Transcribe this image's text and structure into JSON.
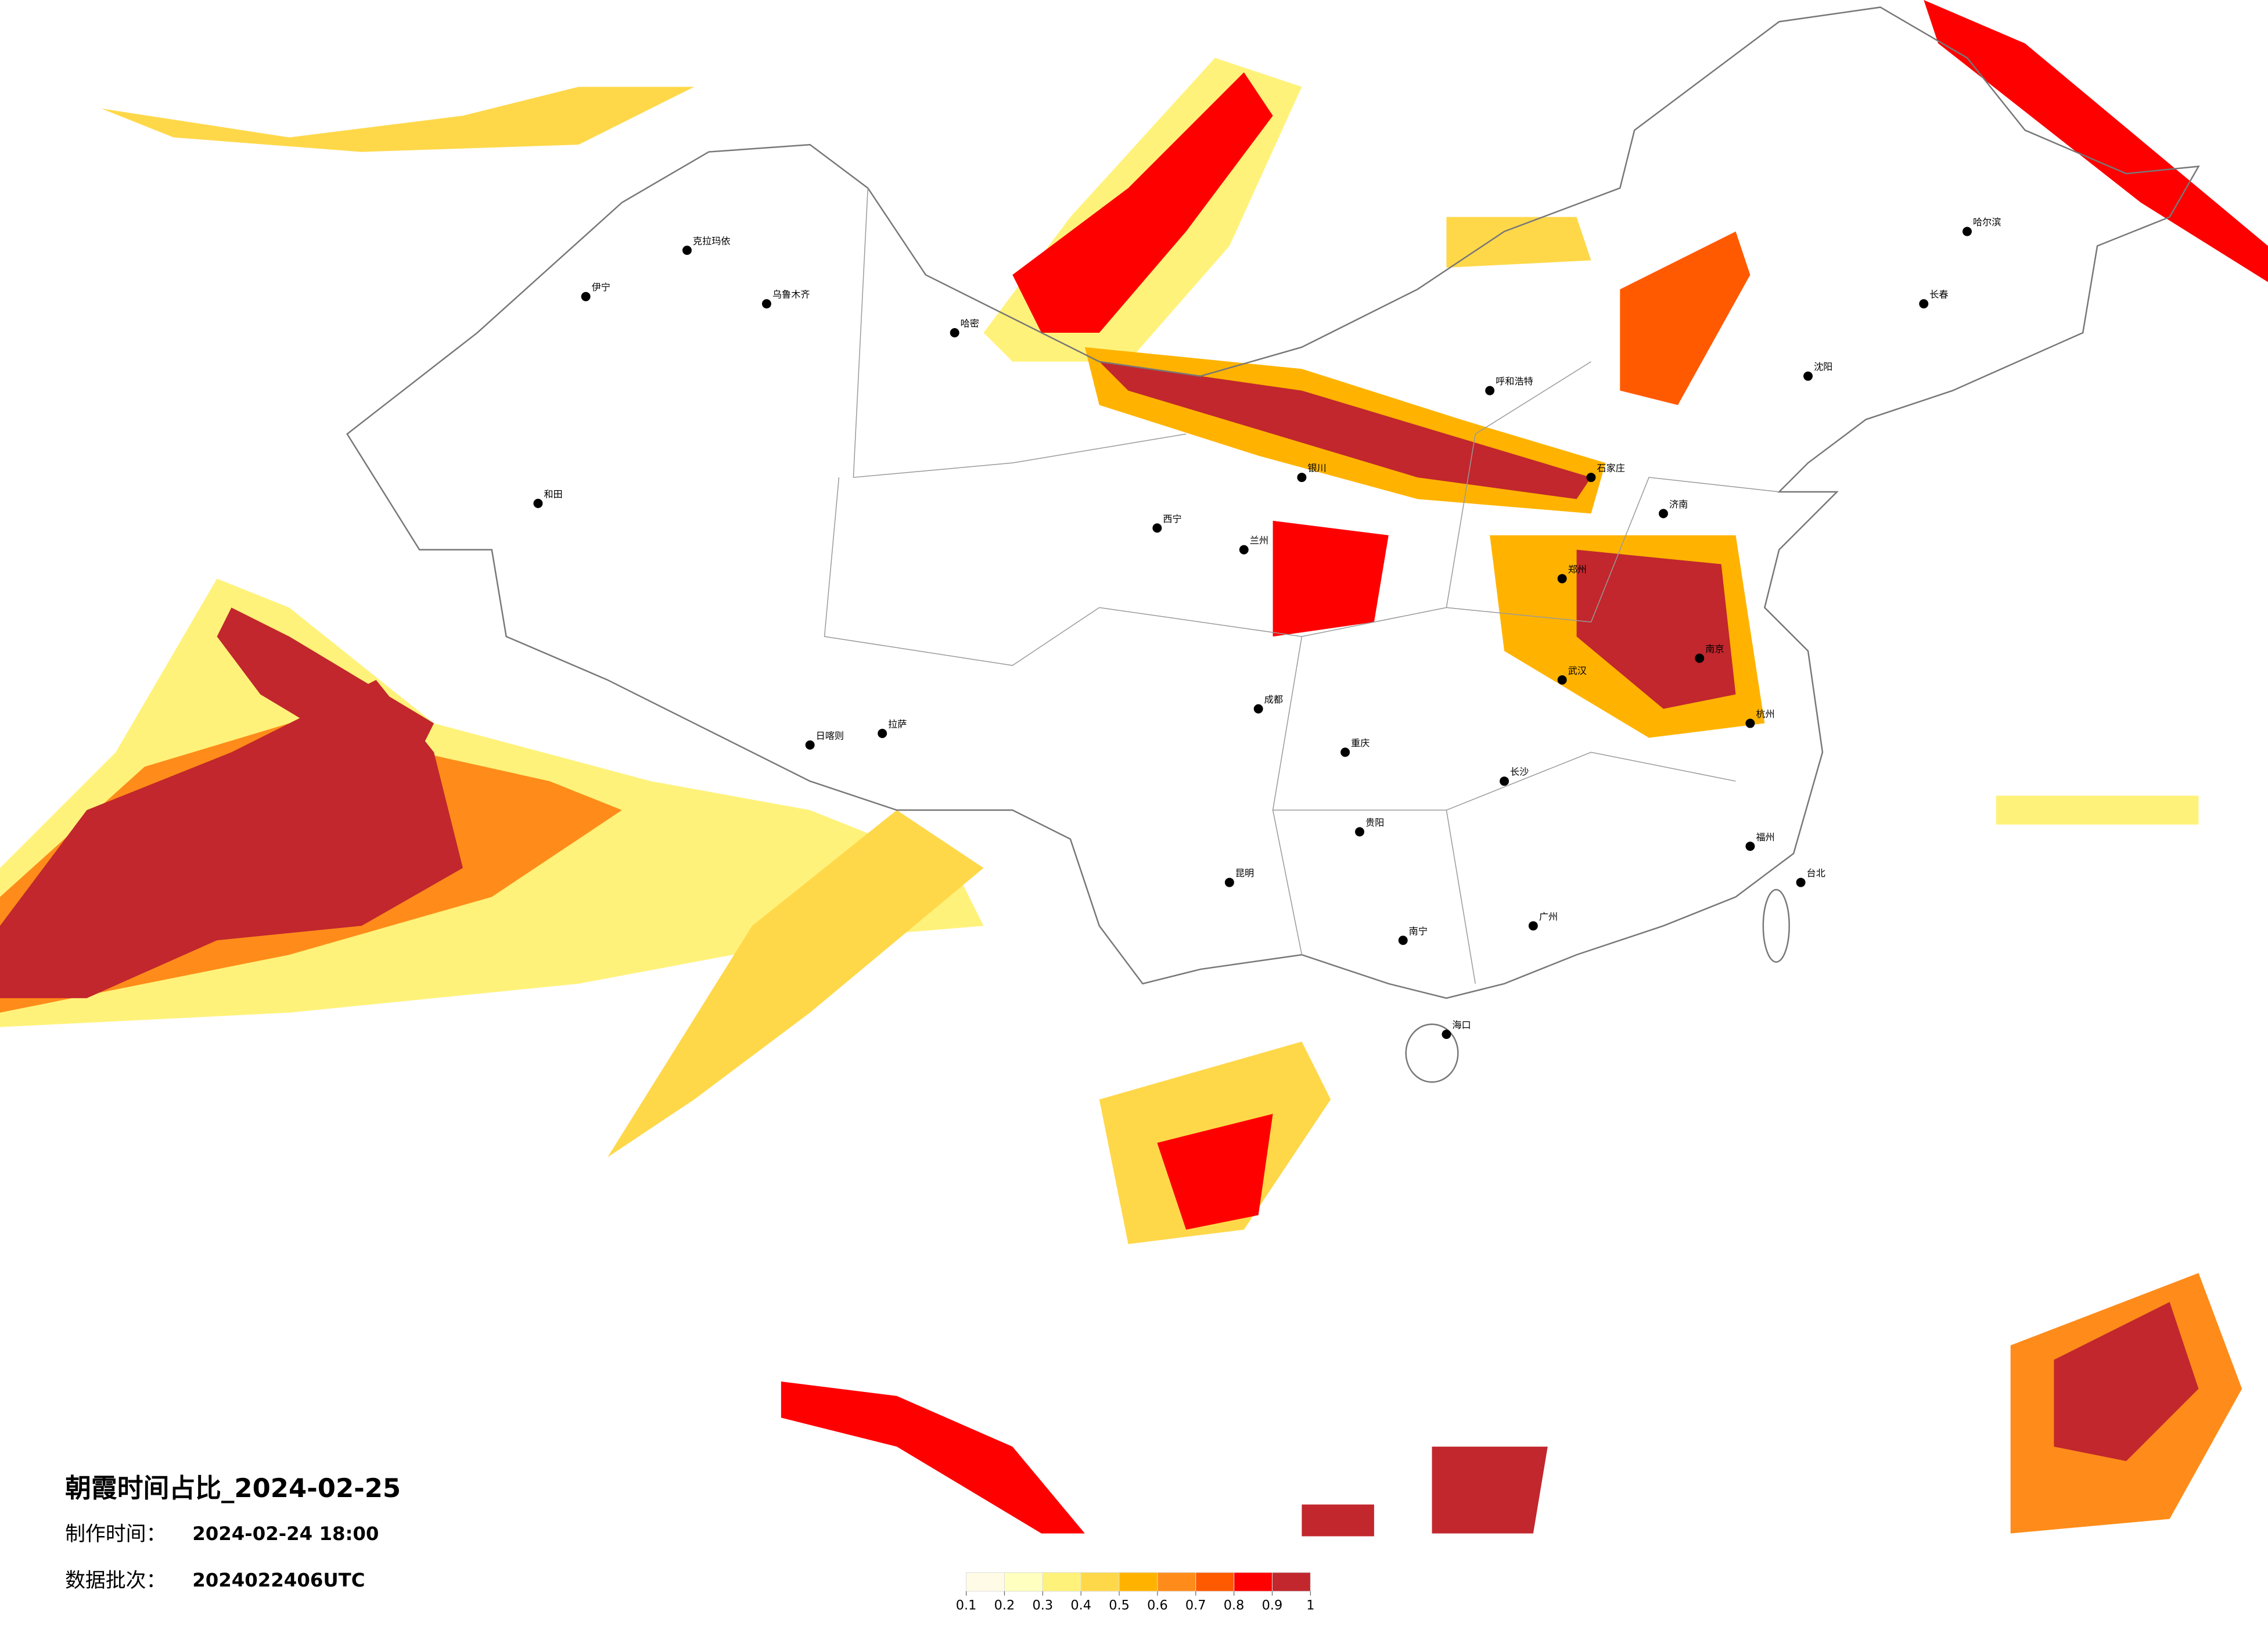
{
  "title": "朝霞时间占比_2024-02-25",
  "made_label": "制作时间：",
  "made_time": "2024-02-24 18:00",
  "batch_label": "数据批次：",
  "batch": "2024022406UTC",
  "legend": {
    "ticks": [
      0.1,
      0.2,
      0.3,
      0.4,
      0.5,
      0.6,
      0.7,
      0.8,
      0.9,
      1
    ],
    "colors": [
      "#fffbe6",
      "#ffffbf",
      "#fff27a",
      "#ffd84a",
      "#ffb300",
      "#ff8c1a",
      "#ff5a00",
      "#ff0000",
      "#c1272d"
    ]
  },
  "cities": [
    "伊宁",
    "克拉玛依",
    "乌鲁木齐",
    "哈密",
    "和田",
    "拉萨",
    "日喀则",
    "西宁",
    "兰州",
    "银川",
    "呼和浩特",
    "石家庄",
    "济南",
    "郑州",
    "南京",
    "杭州",
    "武汉",
    "长沙",
    "成都",
    "重庆",
    "贵阳",
    "昆明",
    "南宁",
    "广州",
    "福州",
    "台北",
    "海口",
    "长春",
    "哈尔滨",
    "沈阳"
  ]
}
